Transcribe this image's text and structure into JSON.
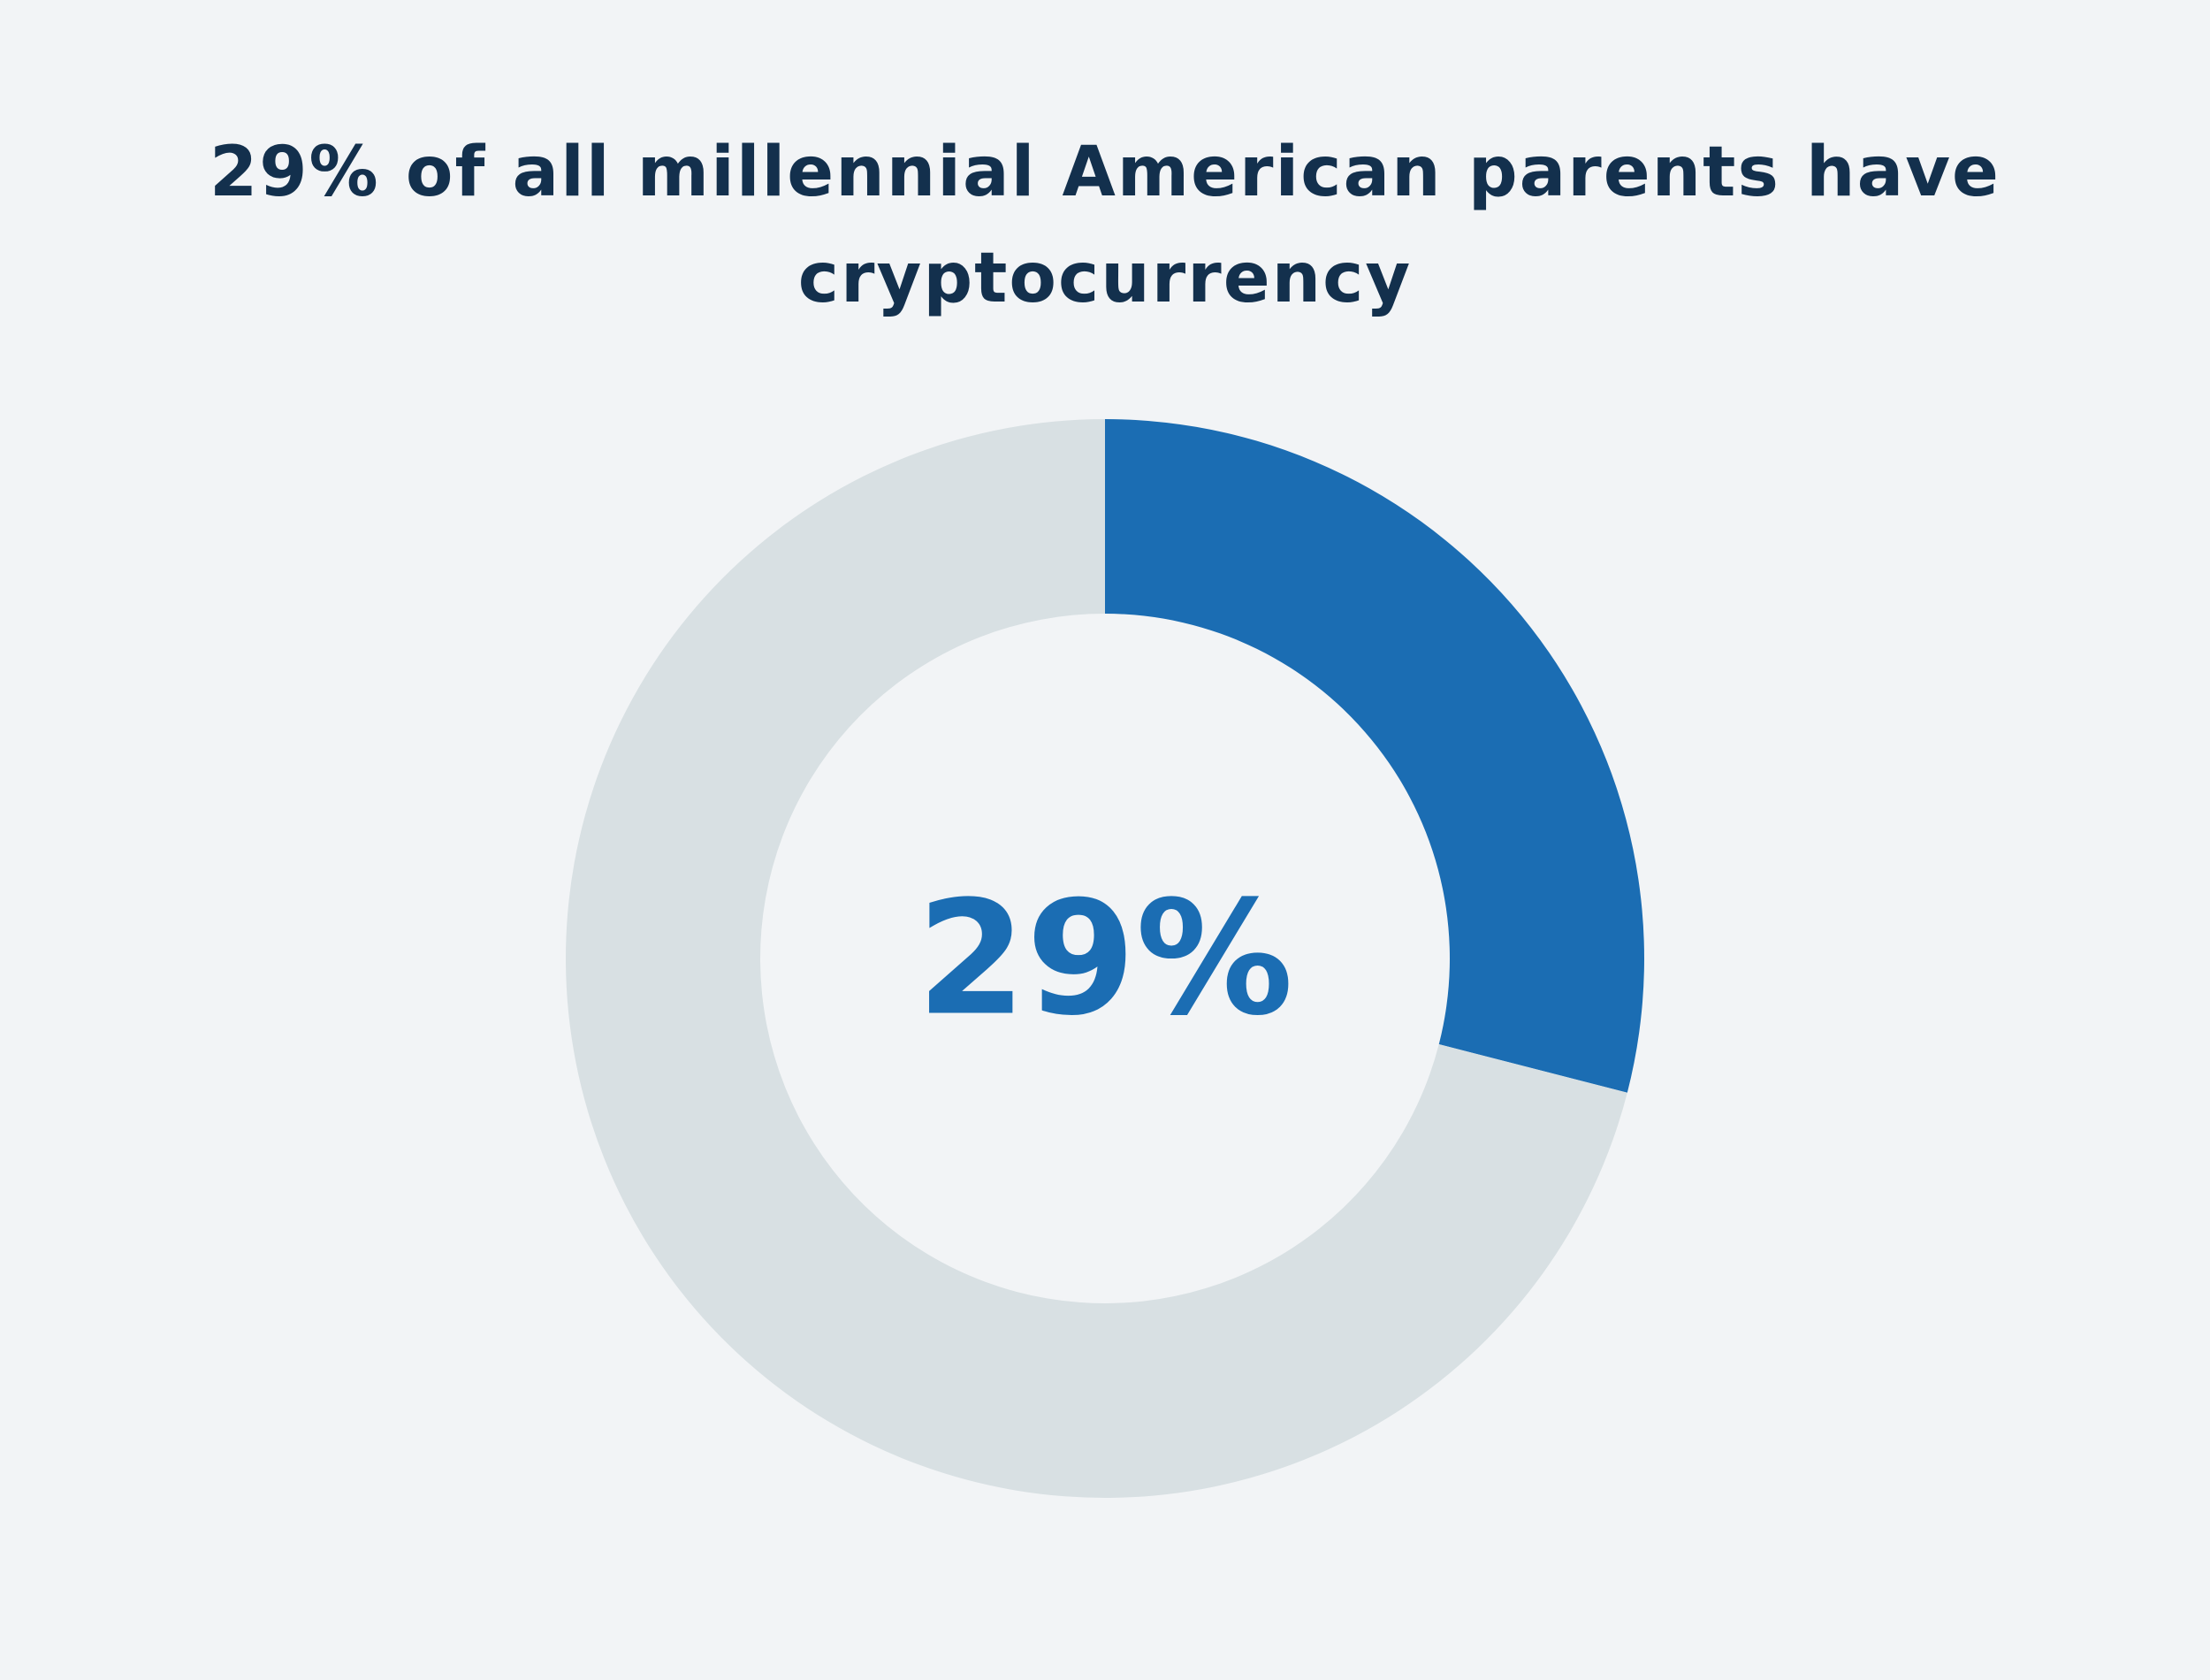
{
  "chart_data": {
    "type": "donut",
    "title": "29% of all millennial American parents have cryptocurrency",
    "categories": [
      null,
      null
    ],
    "values": [
      29,
      71
    ],
    "value_labels": [
      "29%",
      null
    ],
    "colors": [
      "#1b6db3",
      "#d8e0e3"
    ]
  }
}
